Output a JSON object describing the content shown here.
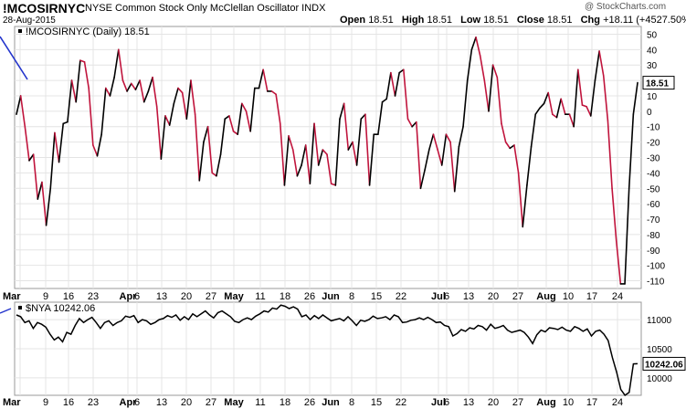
{
  "header": {
    "symbol": "!MCOSIRNYC",
    "description": "NYSE Common Stock Only McClellan Oscillator  INDX",
    "date": "28-Aug-2015",
    "open_label": "Open",
    "open": "18.51",
    "high_label": "High",
    "high": "18.51",
    "low_label": "Low",
    "low": "18.51",
    "close_label": "Close",
    "close": "18.51",
    "chg_label": "Chg",
    "chg": "+18.11 (+4527.50%)",
    "brand": "@ StockCharts.com"
  },
  "chart_data": [
    {
      "type": "line",
      "legend": "!MCOSIRNYC (Daily) 18.51",
      "last_value_label": "18.51",
      "ylim": [
        -115,
        55
      ],
      "yticks": [
        50,
        40,
        30,
        20,
        10,
        0,
        -10,
        -20,
        -30,
        -40,
        -50,
        -60,
        -70,
        -80,
        -90,
        -100,
        -110
      ],
      "x_ticks": [
        "Mar",
        "9",
        "16",
        "23",
        "Apr",
        "6",
        "13",
        "20",
        "27",
        "May",
        "11",
        "18",
        "26",
        "Jun",
        "8",
        "15",
        "22",
        "Jul",
        "6",
        "13",
        "20",
        "27",
        "Aug",
        "10",
        "17",
        "24"
      ],
      "colors": {
        "up": "#000000",
        "down": "#c0143c"
      },
      "values": [
        -2,
        10,
        -10,
        -32,
        -28,
        -57,
        -46,
        -74,
        -50,
        -14,
        -33,
        -8,
        -7,
        20,
        6,
        33,
        32,
        15,
        -22,
        -29,
        -15,
        15,
        10,
        22,
        40,
        20,
        13,
        18,
        14,
        20,
        6,
        13,
        22,
        3,
        -31,
        -3,
        -9,
        5,
        15,
        12,
        -5,
        20,
        -2,
        -45,
        -20,
        -10,
        -40,
        -42,
        -28,
        -5,
        -3,
        -13,
        -15,
        5,
        0,
        -13,
        15,
        15,
        27,
        13,
        13,
        11,
        -8,
        -48,
        -16,
        -25,
        -42,
        -35,
        -22,
        -47,
        -8,
        -35,
        -25,
        -28,
        -47,
        -48,
        -5,
        5,
        -25,
        -20,
        -35,
        -5,
        -2,
        -48,
        -15,
        -15,
        6,
        8,
        25,
        10,
        25,
        27,
        -5,
        -10,
        -7,
        -50,
        -38,
        -25,
        -15,
        -25,
        -35,
        -15,
        -20,
        -52,
        -23,
        -10,
        20,
        40,
        48,
        36,
        20,
        0,
        30,
        22,
        -8,
        -20,
        -24,
        -22,
        -40,
        -75,
        -48,
        -23,
        -2,
        2,
        5,
        12,
        -2,
        -4,
        8,
        -2,
        -2,
        -10,
        27,
        4,
        3,
        -3,
        20,
        39,
        23,
        -6,
        -50,
        -84,
        -112,
        -112,
        -50,
        -2,
        18.51
      ]
    },
    {
      "type": "line",
      "legend": "$NYA 10242.06",
      "last_value_label": "10242.06",
      "ylim": [
        9700,
        11300
      ],
      "yticks": [
        11000,
        10500,
        10000
      ],
      "x_ticks": [
        "Mar",
        "9",
        "16",
        "23",
        "Apr",
        "6",
        "13",
        "20",
        "27",
        "May",
        "11",
        "18",
        "26",
        "Jun",
        "8",
        "15",
        "22",
        "Jul",
        "6",
        "13",
        "20",
        "27",
        "Aug",
        "10",
        "17",
        "24"
      ],
      "colors": {
        "line": "#000000",
        "axis_line": "#2233cc"
      },
      "values": [
        11080,
        11050,
        10950,
        10980,
        10850,
        10950,
        10920,
        10870,
        10750,
        10650,
        10700,
        10620,
        10780,
        10750,
        10900,
        11020,
        10950,
        11000,
        11040,
        10950,
        10850,
        10950,
        10980,
        10900,
        10950,
        10980,
        11060,
        11040,
        11070,
        10950,
        11000,
        10980,
        10920,
        10950,
        11000,
        11020,
        11070,
        11040,
        11080,
        10990,
        11050,
        11000,
        11100,
        11050,
        11100,
        11150,
        11080,
        11030,
        11120,
        11150,
        11100,
        11050,
        10970,
        10950,
        11000,
        11030,
        11000,
        11060,
        11100,
        11150,
        11130,
        11200,
        11180,
        11250,
        11230,
        11190,
        11220,
        11180,
        11050,
        11080,
        11000,
        11070,
        11020,
        11080,
        11030,
        10980,
        11000,
        11020,
        10980,
        11050,
        10980,
        10900,
        10990,
        10970,
        11000,
        11060,
        11020,
        11030,
        11050,
        11000,
        11080,
        11050,
        10950,
        10960,
        10990,
        11000,
        11030,
        11000,
        11040,
        11000,
        10950,
        10960,
        10900,
        10880,
        10720,
        10760,
        10830,
        10800,
        10860,
        10840,
        10900,
        10880,
        10820,
        10920,
        10850,
        10870,
        10900,
        10820,
        10780,
        10800,
        10820,
        10780,
        10700,
        10590,
        10740,
        10820,
        10790,
        10860,
        10850,
        10830,
        10870,
        10820,
        10800,
        10880,
        10850,
        10800,
        10840,
        10720,
        10800,
        10820,
        10750,
        10640,
        10350,
        10100,
        9800,
        9700,
        9750,
        10240,
        10242
      ]
    }
  ]
}
